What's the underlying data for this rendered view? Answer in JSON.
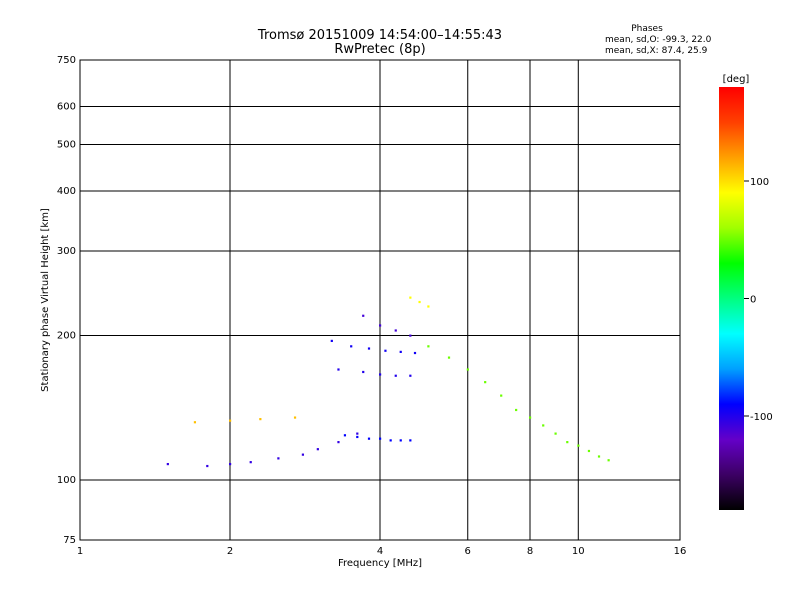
{
  "chart_data": {
    "type": "scatter",
    "title": "Tromsø 20151009 14:54:00–14:55:43",
    "subtitle": "RwPretec (8p)",
    "xlabel": "Frequency [MHz]",
    "ylabel": "Stationary phase Virtual Height [km]",
    "x_scale": "log",
    "y_scale": "log",
    "xlim": [
      1,
      16
    ],
    "ylim": [
      75,
      750
    ],
    "x_ticks": [
      1,
      2,
      4,
      6,
      8,
      10,
      16
    ],
    "y_ticks": [
      75,
      100,
      200,
      300,
      400,
      500,
      600,
      750
    ],
    "grid": true,
    "stats": {
      "heading": "Phases",
      "line_o": "mean, sd,O: -99.3, 22.0",
      "line_x": "mean, sd,X:  87.4, 25.9"
    },
    "colorbar": {
      "label": "[deg]",
      "range": [
        -180,
        180
      ],
      "ticks": [
        100,
        0,
        -100
      ],
      "stops": [
        "#000000",
        "#3c0064",
        "#6400c8",
        "#0000ff",
        "#00a0ff",
        "#00ffff",
        "#00ff80",
        "#00ff00",
        "#a0ff00",
        "#ffff00",
        "#ffa000",
        "#ff4000",
        "#ff0000"
      ]
    },
    "traces": [
      {
        "name": "o_trace_low",
        "x": [
          1.5,
          1.8,
          2.0,
          2.2,
          2.5,
          2.8,
          3.0,
          3.3,
          3.6
        ],
        "y": [
          108,
          107,
          108,
          109,
          111,
          113,
          116,
          120,
          125
        ],
        "phase": -105
      },
      {
        "name": "o_trace_mid",
        "x": [
          3.4,
          3.6,
          3.8,
          4.0,
          4.2,
          4.4,
          4.6
        ],
        "y": [
          124,
          123,
          122,
          122,
          121,
          121,
          121
        ],
        "phase": -90
      },
      {
        "name": "o_trace_high1",
        "x": [
          3.2,
          3.5,
          3.8,
          4.1,
          4.4,
          4.7
        ],
        "y": [
          195,
          190,
          188,
          186,
          185,
          184
        ],
        "phase": -95
      },
      {
        "name": "o_trace_high2",
        "x": [
          3.3,
          3.7,
          4.0,
          4.3,
          4.6
        ],
        "y": [
          170,
          168,
          166,
          165,
          165
        ],
        "phase": -100
      },
      {
        "name": "o_trace_top",
        "x": [
          3.7,
          4.0,
          4.3,
          4.6
        ],
        "y": [
          220,
          210,
          205,
          200
        ],
        "phase": -110
      },
      {
        "name": "x_trace_low",
        "x": [
          1.7,
          2.0,
          2.3,
          2.7
        ],
        "y": [
          132,
          133,
          134,
          135
        ],
        "phase": 110
      },
      {
        "name": "x_trace_high",
        "x": [
          4.6,
          4.8,
          5.0
        ],
        "y": [
          240,
          235,
          230
        ],
        "phase": 90
      },
      {
        "name": "mixed_cloud",
        "x": [
          5.0,
          5.5,
          6.0,
          6.5,
          7.0,
          7.5,
          8.0,
          8.5,
          9.0,
          9.5,
          10.0,
          10.5,
          11.0,
          11.5
        ],
        "y": [
          190,
          180,
          170,
          160,
          150,
          140,
          135,
          130,
          125,
          120,
          118,
          115,
          112,
          110
        ],
        "phase": 50
      }
    ]
  }
}
